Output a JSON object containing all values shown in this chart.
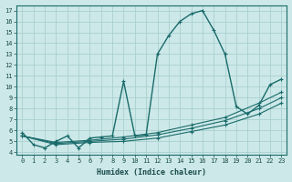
{
  "xlabel": "Humidex (Indice chaleur)",
  "bg_color": "#cce8e8",
  "grid_color": "#aacfcf",
  "line_color": "#1a6b6b",
  "xlim": [
    -0.5,
    23.5
  ],
  "ylim": [
    3.8,
    17.5
  ],
  "xticks": [
    0,
    1,
    2,
    3,
    4,
    5,
    6,
    7,
    8,
    9,
    10,
    11,
    12,
    13,
    14,
    15,
    16,
    17,
    18,
    19,
    20,
    21,
    22,
    23
  ],
  "yticks": [
    4,
    5,
    6,
    7,
    8,
    9,
    10,
    11,
    12,
    13,
    14,
    15,
    16,
    17
  ],
  "lines": [
    {
      "x": [
        0,
        1,
        2,
        3,
        4,
        5,
        6,
        7,
        8,
        9,
        10,
        11,
        12,
        13,
        14,
        15,
        16,
        17,
        18,
        19,
        20,
        21,
        22,
        23
      ],
      "y": [
        5.8,
        4.7,
        4.4,
        5.0,
        5.5,
        4.4,
        5.3,
        5.4,
        5.5,
        10.5,
        5.5,
        5.6,
        13.0,
        14.7,
        16.0,
        16.7,
        17.0,
        15.2,
        13.0,
        8.2,
        7.5,
        8.3,
        10.2,
        10.7
      ],
      "marker": true
    },
    {
      "x": [
        0,
        3,
        6,
        9,
        12,
        15,
        18,
        21,
        23
      ],
      "y": [
        5.5,
        4.9,
        5.1,
        5.4,
        5.8,
        6.5,
        7.2,
        8.5,
        9.5
      ],
      "marker": true
    },
    {
      "x": [
        0,
        3,
        6,
        9,
        12,
        15,
        18,
        21,
        23
      ],
      "y": [
        5.5,
        4.8,
        5.0,
        5.2,
        5.6,
        6.2,
        6.9,
        8.0,
        9.0
      ],
      "marker": true
    },
    {
      "x": [
        0,
        3,
        6,
        9,
        12,
        15,
        18,
        21,
        23
      ],
      "y": [
        5.5,
        4.7,
        4.9,
        5.0,
        5.3,
        5.9,
        6.5,
        7.5,
        8.5
      ],
      "marker": true
    }
  ]
}
